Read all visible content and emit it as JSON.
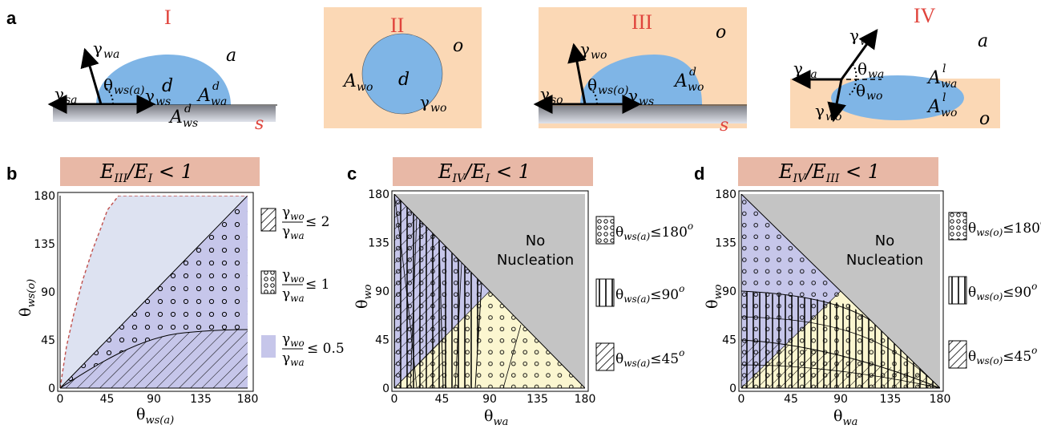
{
  "panel_labels": {
    "a": "a",
    "b": "b",
    "c": "c",
    "d": "d"
  },
  "schematics": {
    "I": {
      "roman": "I",
      "phase": "a",
      "substrate": "s",
      "drop": "d",
      "g_wa": "γ",
      "g_wa_sub": "wa",
      "g_sa": "γ",
      "g_sa_sub": "sa",
      "g_ws": "γ",
      "g_ws_sub": "ws",
      "theta": "θ",
      "theta_sub": "ws(a)",
      "A_wa": "A",
      "A_wa_sub": "wa",
      "A_wa_sup": "d",
      "A_ws": "A",
      "A_ws_sub": "ws",
      "A_ws_sup": "d"
    },
    "II": {
      "roman": "II",
      "phase": "o",
      "drop": "d",
      "A_wo": "A",
      "A_wo_sub": "wo",
      "g_wo": "γ",
      "g_wo_sub": "wo"
    },
    "III": {
      "roman": "III",
      "phase": "o",
      "substrate": "s",
      "g_wo": "γ",
      "g_wo_sub": "wo",
      "g_so": "γ",
      "g_so_sub": "so",
      "g_ws": "γ",
      "g_ws_sub": "ws",
      "theta": "θ",
      "theta_sub": "ws(o)",
      "A_wo": "A",
      "A_wo_sub": "wo",
      "A_wo_sup": "d"
    },
    "IV": {
      "roman": "IV",
      "phase_top": "a",
      "phase_bottom": "o",
      "g_wa": "γ",
      "g_wa_sub": "wa",
      "g_oa": "γ",
      "g_oa_sub": "oa",
      "g_wo": "γ",
      "g_wo_sub": "wo",
      "th_wa": "θ",
      "th_wa_sub": "wa",
      "th_wo": "θ",
      "th_wo_sub": "wo",
      "A_wa": "A",
      "A_wa_sub": "wa",
      "A_wa_sup": "l",
      "A_wo": "A",
      "A_wo_sub": "wo",
      "A_wo_sup": "l"
    }
  },
  "colors": {
    "drop": "#7fb5e6",
    "oil": "#fbd8b5",
    "substrate_top": "#7d7f86",
    "substrate_bottom": "#d7dbe3",
    "band": "#e8b8a6",
    "region_blue": "#c6c6ea",
    "region_light": "#dde2f1",
    "region_yellow": "#fbf6d0",
    "region_gray": "#c4c4c4",
    "roman": "#e0443c",
    "dashed": "#c0504d"
  },
  "chart_data": [
    {
      "panel": "b",
      "type": "area",
      "title_main": "E",
      "title_sub": "III",
      "title_mid": "/E",
      "title_sub2": "I",
      "title_tail": " < 1",
      "xlabel": "θ",
      "xlabel_sub": "ws(a)",
      "ylabel": "θ",
      "ylabel_sub": "ws(o)",
      "xlim": [
        0,
        180
      ],
      "ylim": [
        0,
        180
      ],
      "xticks": [
        "0",
        "45",
        "90",
        "135",
        "180"
      ],
      "yticks": [
        "0",
        "45",
        "90",
        "135",
        "180"
      ],
      "regions": [
        {
          "pattern": "light-blue",
          "boundary_x": [
            0,
            10,
            20,
            30,
            40,
            50,
            55,
            58
          ],
          "boundary_y": [
            0,
            30,
            55,
            80,
            105,
            135,
            158,
            180
          ]
        },
        {
          "pattern": "circles",
          "upper": [
            [
              0,
              0
            ],
            [
              180,
              180
            ]
          ]
        },
        {
          "pattern": "hatch",
          "upper": [
            [
              0,
              0
            ],
            [
              30,
              22
            ],
            [
              60,
              38
            ],
            [
              90,
              50
            ],
            [
              120,
              55
            ],
            [
              150,
              57
            ],
            [
              180,
              57
            ]
          ]
        }
      ],
      "legend": [
        {
          "pattern": "hatch",
          "num": "γ",
          "num_sub": "wo",
          "den": "γ",
          "den_sub": "wa",
          "op": "≤ 2"
        },
        {
          "pattern": "circles",
          "num": "γ",
          "num_sub": "wo",
          "den": "γ",
          "den_sub": "wa",
          "op": "≤ 1"
        },
        {
          "pattern": "light-blue",
          "num": "γ",
          "num_sub": "wo",
          "den": "γ",
          "den_sub": "wa",
          "op": "≤ 0.5"
        }
      ]
    },
    {
      "panel": "c",
      "type": "area",
      "title_main": "E",
      "title_sub": "IV",
      "title_mid": "/E",
      "title_sub2": "I",
      "title_tail": " < 1",
      "xlabel": "θ",
      "xlabel_sub": "wa",
      "ylabel": "θ",
      "ylabel_sub": "wo",
      "xlim": [
        0,
        180
      ],
      "ylim": [
        0,
        180
      ],
      "xticks": [
        "0",
        "45",
        "90",
        "135",
        "180"
      ],
      "yticks": [
        "0",
        "45",
        "90",
        "135",
        "180"
      ],
      "annotation": [
        "No",
        "Nucleation"
      ],
      "legend": [
        {
          "pattern": "circles",
          "label": "θ",
          "sub": "ws(a)",
          "op": "≤180",
          "deg": "o"
        },
        {
          "pattern": "vertical",
          "label": "θ",
          "sub": "ws(a)",
          "op": "≤90",
          "deg": "o"
        },
        {
          "pattern": "hatch",
          "label": "θ",
          "sub": "ws(a)",
          "op": "≤45",
          "deg": "o"
        }
      ]
    },
    {
      "panel": "d",
      "type": "area",
      "title_main": "E",
      "title_sub": "IV",
      "title_mid": "/E",
      "title_sub2": "III",
      "title_tail": " < 1",
      "xlabel": "θ",
      "xlabel_sub": "wa",
      "ylabel": "θ",
      "ylabel_sub": "wo",
      "xlim": [
        0,
        180
      ],
      "ylim": [
        0,
        180
      ],
      "xticks": [
        "0",
        "45",
        "90",
        "135",
        "180"
      ],
      "yticks": [
        "0",
        "45",
        "90",
        "135",
        "180"
      ],
      "annotation": [
        "No",
        "Nucleation"
      ],
      "legend": [
        {
          "pattern": "circles",
          "label": "θ",
          "sub": "ws(o)",
          "op": "≤180",
          "deg": "o"
        },
        {
          "pattern": "vertical",
          "label": "θ",
          "sub": "ws(o)",
          "op": "≤90",
          "deg": "o"
        },
        {
          "pattern": "hatch",
          "label": "θ",
          "sub": "ws(o)",
          "op": "≤45",
          "deg": "o"
        }
      ]
    }
  ]
}
